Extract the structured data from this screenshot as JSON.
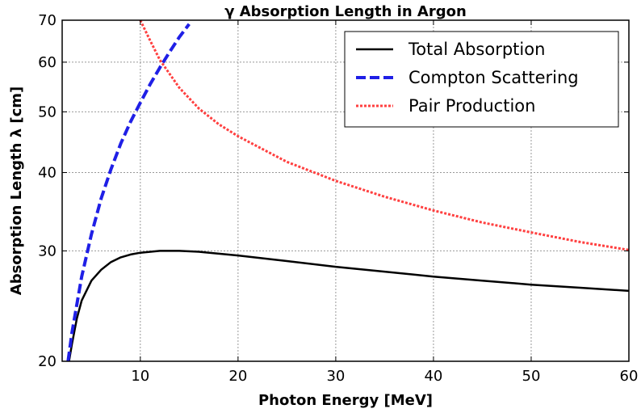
{
  "chart_data": {
    "type": "line",
    "title": "γ Absorption Length in Argon",
    "xlabel": "Photon Energy [MeV]",
    "ylabel": "Absorption Length λ [cm]",
    "xlim": [
      2,
      60
    ],
    "ylim": [
      20,
      70
    ],
    "y_scale": "log",
    "grid": true,
    "legend_position": "top-right",
    "x_ticks": [
      10,
      20,
      30,
      40,
      50,
      60
    ],
    "y_ticks": [
      20,
      30,
      40,
      50,
      60,
      70
    ],
    "x_tick_labels": [
      "10",
      "20",
      "30",
      "40",
      "50",
      "60"
    ],
    "y_tick_labels": [
      "20",
      "30",
      "40",
      "50",
      "60",
      "70"
    ],
    "series": [
      {
        "name": "Total Absorption",
        "style": "solid",
        "color": "#000000",
        "x": [
          2.7,
          3,
          3.5,
          4,
          5,
          6,
          7,
          8,
          9,
          10,
          12,
          14,
          16,
          20,
          25,
          30,
          35,
          40,
          45,
          50,
          55,
          60
        ],
        "y": [
          20.0,
          21.3,
          23.4,
          25.0,
          26.9,
          28.0,
          28.8,
          29.3,
          29.6,
          29.8,
          30.0,
          30.0,
          29.9,
          29.5,
          28.9,
          28.3,
          27.8,
          27.3,
          26.9,
          26.5,
          26.2,
          25.9
        ]
      },
      {
        "name": "Compton Scattering",
        "style": "dashed",
        "color": "#1f1fe6",
        "x": [
          2.6,
          3,
          4,
          5,
          6,
          7,
          8,
          9,
          10,
          11,
          12,
          13,
          14,
          15
        ],
        "y": [
          20.0,
          22.2,
          27.3,
          31.9,
          36.4,
          40.5,
          44.5,
          48.2,
          51.7,
          55.3,
          58.8,
          62.3,
          65.8,
          69.0
        ]
      },
      {
        "name": "Pair Production",
        "style": "dotted",
        "color": "#ff4040",
        "x": [
          10,
          11,
          12,
          14,
          16,
          18,
          20,
          25,
          30,
          35,
          40,
          45,
          50,
          55,
          60
        ],
        "y": [
          70.0,
          65.0,
          60.5,
          54.6,
          50.6,
          47.8,
          45.7,
          41.6,
          38.8,
          36.6,
          34.8,
          33.3,
          32.1,
          31.0,
          30.1
        ]
      }
    ]
  }
}
